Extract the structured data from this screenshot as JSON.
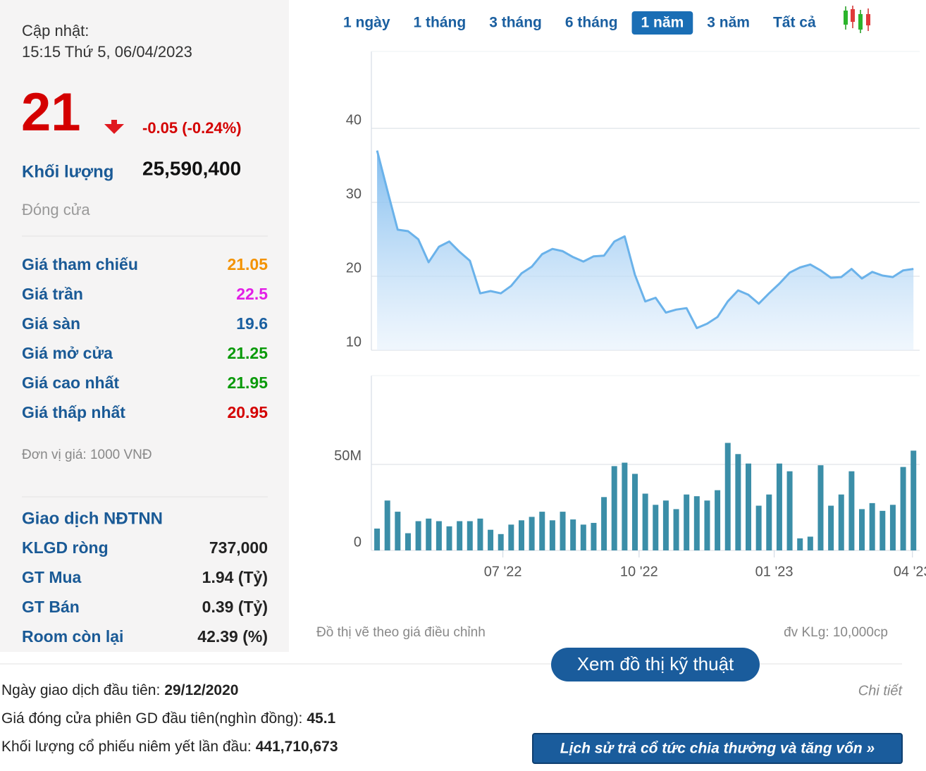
{
  "update": {
    "label": "Cập nhật:",
    "time": "15:15 Thứ 5, 06/04/2023"
  },
  "price": {
    "value": "21",
    "change": "-0.05 (-0.24%)"
  },
  "volume": {
    "label": "Khối lượng",
    "value": "25,590,400"
  },
  "status": "Đóng cửa",
  "stats": [
    {
      "label": "Giá tham chiếu",
      "value": "21.05",
      "color": "#f39200"
    },
    {
      "label": "Giá trần",
      "value": "22.5",
      "color": "#e21ee6"
    },
    {
      "label": "Giá sàn",
      "value": "19.6",
      "color": "#1a5fa0"
    },
    {
      "label": "Giá mở cửa",
      "value": "21.25",
      "color": "#0a9a0a"
    },
    {
      "label": "Giá cao nhất",
      "value": "21.95",
      "color": "#0a9a0a"
    },
    {
      "label": "Giá thấp nhất",
      "value": "20.95",
      "color": "#d40000"
    }
  ],
  "unit_note": "Đơn vị giá: 1000 VNĐ",
  "foreign": {
    "title": "Giao dịch NĐTNN",
    "rows": [
      {
        "label": "KLGD ròng",
        "value": "737,000"
      },
      {
        "label": "GT Mua",
        "value": "1.94 (Tỷ)"
      },
      {
        "label": "GT Bán",
        "value": "0.39 (Tỷ)"
      },
      {
        "label": "Room còn lại",
        "value": "42.39 (%)"
      }
    ]
  },
  "tabs": [
    "1 ngày",
    "1 tháng",
    "3 tháng",
    "6 tháng",
    "1 năm",
    "3 năm",
    "Tất cả"
  ],
  "active_tab": 4,
  "chart_data": [
    {
      "type": "line",
      "color": "#6ab2ea",
      "ylim": [
        10,
        50.4
      ],
      "yticks": [
        10,
        20,
        30,
        40
      ],
      "xlim": [
        -0.55,
        52.6
      ],
      "grid": true,
      "values": [
        37.0,
        31.6,
        26.3,
        26.1,
        25.0,
        21.9,
        24.0,
        24.7,
        23.3,
        22.1,
        17.7,
        18.0,
        17.7,
        18.7,
        20.4,
        21.3,
        23.0,
        23.7,
        23.4,
        22.6,
        22.0,
        22.7,
        22.8,
        24.7,
        25.4,
        20.2,
        16.6,
        17.1,
        15.1,
        15.5,
        15.7,
        13.0,
        13.6,
        14.5,
        16.6,
        18.1,
        17.5,
        16.3,
        17.7,
        19.0,
        20.5,
        21.2,
        21.6,
        20.8,
        19.8,
        19.9,
        21.0,
        19.7,
        20.6,
        20.1,
        19.9,
        20.8,
        21.0
      ]
    },
    {
      "type": "bar",
      "color": "#3b8ea8",
      "ylim": [
        0,
        101.6
      ],
      "yticks": [
        0,
        {
          "value": 50,
          "label": "50M"
        }
      ],
      "xlim": [
        -0.55,
        52.6
      ],
      "grid": true,
      "xticks": [
        {
          "value": 12.2,
          "label": "07 '22"
        },
        {
          "value": 25.4,
          "label": "10 '22"
        },
        {
          "value": 38.5,
          "label": "01 '23"
        },
        {
          "value": 51.9,
          "label": "04 '23"
        }
      ],
      "values": [
        12.7,
        29,
        22.5,
        10,
        17,
        18.5,
        17,
        14,
        17,
        17,
        18.5,
        12,
        9.5,
        15,
        17.5,
        19.5,
        22.5,
        17.5,
        22.5,
        18,
        15,
        16,
        31,
        49,
        51,
        44.5,
        33,
        26.5,
        29,
        24,
        32.5,
        31.5,
        29,
        35,
        62.5,
        56,
        50.5,
        26,
        32.5,
        50.5,
        46,
        7,
        8,
        49.5,
        26,
        32.5,
        46,
        24,
        27.5,
        23,
        26.5,
        48.5,
        58
      ]
    }
  ],
  "chart_notes": {
    "left": "Đồ thị vẽ theo giá điều chỉnh",
    "right": "đv KLg: 10,000cp"
  },
  "tech_button": "Xem đồ thị kỹ thuật",
  "details_link": "Chi tiết",
  "listing": [
    {
      "label": "Ngày giao dịch đầu tiên:",
      "value": "29/12/2020"
    },
    {
      "label": "Giá đóng cửa phiên GD đầu tiên(nghìn đồng):",
      "value": "45.1"
    },
    {
      "label": "Khối lượng cổ phiếu niêm yết lần đầu:",
      "value": "441,710,673"
    }
  ],
  "history_button": "Lịch sử trả cổ tức chia thưởng và tăng vốn »"
}
